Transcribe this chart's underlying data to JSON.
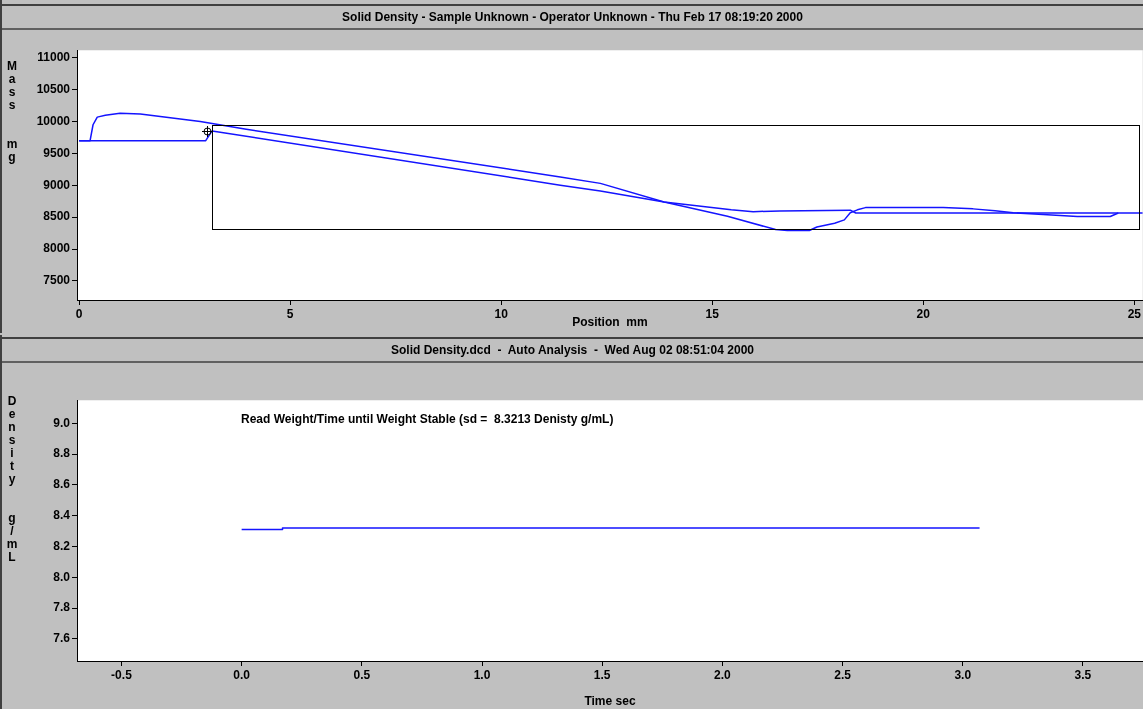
{
  "chart_data": [
    {
      "type": "line",
      "title": "Solid Density - Sample Unknown - Operator Unknown - Thu Feb 17 08:19:20 2000",
      "xlabel": "Position  mm",
      "ylabel": "Mass  mg",
      "xlim": [
        -0.05,
        25.2
      ],
      "xticks": [
        0,
        5,
        10,
        15,
        20,
        25
      ],
      "ylim": [
        7200,
        11120
      ],
      "yticks": [
        7500,
        8000,
        8500,
        9000,
        9500,
        10000,
        10500,
        11000
      ],
      "legend": false,
      "series": [
        {
          "color": "#1414ff",
          "x": [
            0,
            0.26,
            0.33,
            0.43,
            0.62,
            0.97,
            1.45,
            2.87,
            3.96,
            11.4,
            12.35,
            13.86,
            15.36,
            16.5,
            16.78,
            17.3,
            17.48,
            17.9,
            18.13,
            18.27,
            18.44,
            18.63,
            20.47,
            21.18,
            21.7,
            22.13,
            22.84,
            23.65,
            24.43,
            24.62
          ],
          "values": [
            9700,
            9700,
            9950,
            10070,
            10100,
            10130,
            10120,
            10000,
            9880,
            9130,
            9030,
            8737,
            8513,
            8306,
            8290,
            8290,
            8345,
            8405,
            8457,
            8570,
            8615,
            8650,
            8650,
            8630,
            8600,
            8570,
            8540,
            8510,
            8510,
            8565
          ]
        },
        {
          "color": "#1414ff",
          "x": [
            0,
            3.0,
            3.15,
            11.4,
            12.35,
            13.86,
            15.45,
            15.97,
            16.6,
            18.27,
            18.4,
            25.2
          ],
          "values": [
            9700,
            9700,
            9853,
            9002,
            8910,
            8737,
            8616,
            8586,
            8598,
            8610,
            8565,
            8565
          ]
        }
      ]
    },
    {
      "type": "line",
      "title": "Solid Density.dcd  -  Auto Analysis  -  Wed Aug 02 08:51:04 2000",
      "xlabel": "Time sec",
      "ylabel": "Density  g/mL",
      "xlim": [
        -0.685,
        3.75
      ],
      "xticks": [
        {
          "value": -0.5,
          "label": "-0.5"
        },
        {
          "value": 0,
          "label": "0.0"
        },
        {
          "value": 0.5,
          "label": "0.5"
        },
        {
          "value": 1,
          "label": "1.0"
        },
        {
          "value": 1.5,
          "label": "1.5"
        },
        {
          "value": 2,
          "label": "2.0"
        },
        {
          "value": 2.5,
          "label": "2.5"
        },
        {
          "value": 3,
          "label": "3.0"
        },
        {
          "value": 3.5,
          "label": "3.5"
        }
      ],
      "ylim": [
        7.457,
        9.15
      ],
      "yticks": [
        {
          "value": 7.6,
          "label": "7.6"
        },
        {
          "value": 7.8,
          "label": "7.8"
        },
        {
          "value": 8,
          "label": "8.0"
        },
        {
          "value": 8.2,
          "label": "8.2"
        },
        {
          "value": 8.4,
          "label": "8.4"
        },
        {
          "value": 8.6,
          "label": "8.6"
        },
        {
          "value": 8.8,
          "label": "8.8"
        },
        {
          "value": 9,
          "label": "9.0"
        }
      ],
      "legend": false,
      "annotations": [
        "Read Weight/Time until Weight Stable (sd =  8.3213 Denisty g/mL)"
      ],
      "series": [
        {
          "color": "#1414ff",
          "x": [
            0,
            0.17,
            0.17,
            3.07
          ],
          "values": [
            8.31,
            8.31,
            8.32,
            8.32
          ]
        }
      ]
    }
  ]
}
